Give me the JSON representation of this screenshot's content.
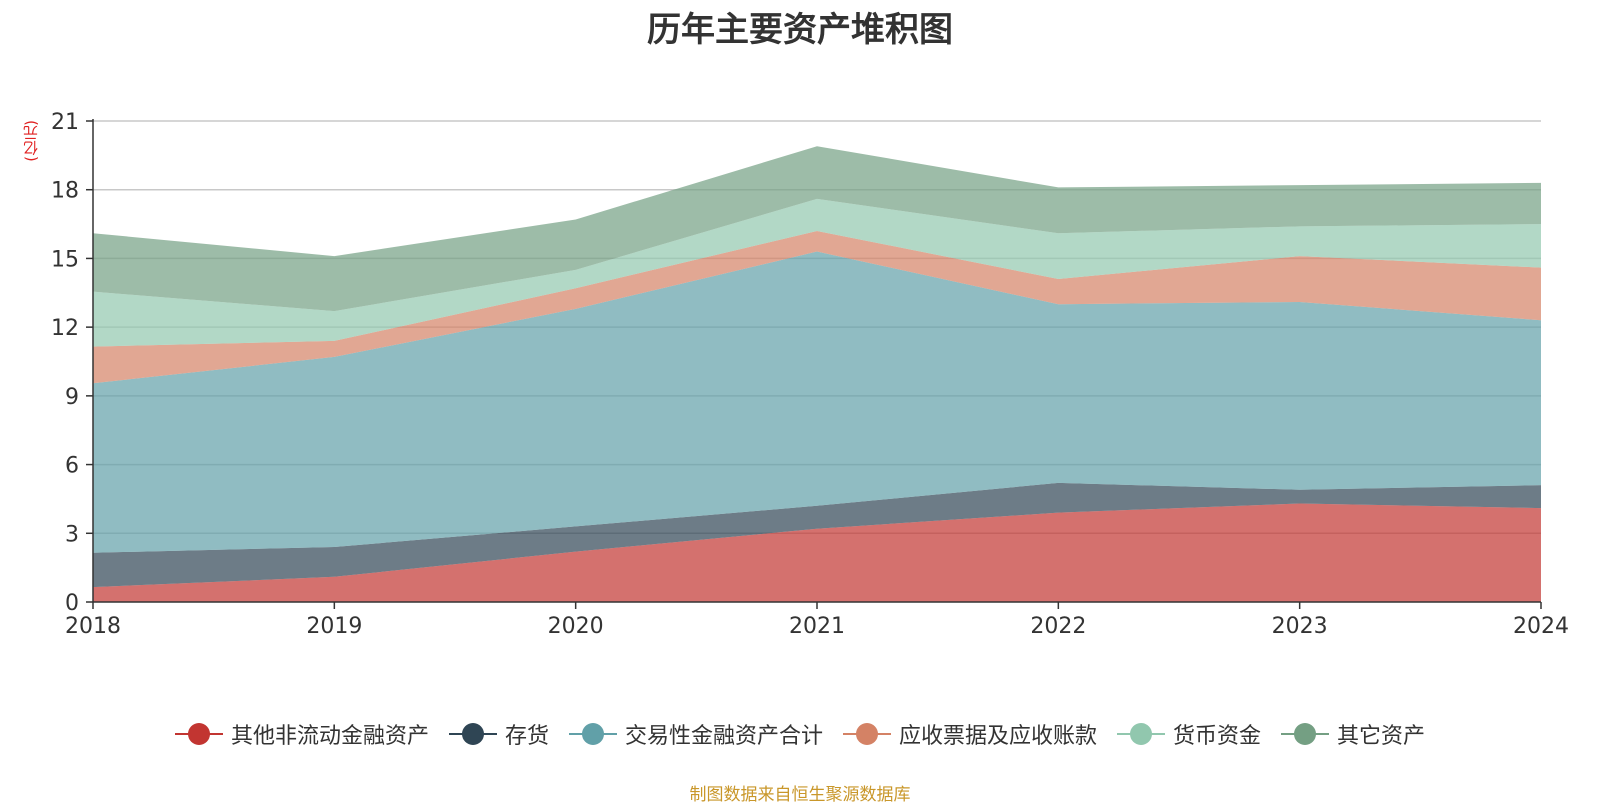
{
  "chart_data": {
    "type": "area",
    "stacked": true,
    "title": "历年主要资产堆积图",
    "unit_label": "(亿元)",
    "x": [
      "2018",
      "2019",
      "2020",
      "2021",
      "2022",
      "2023",
      "2024"
    ],
    "ylim": [
      0,
      21
    ],
    "yticks": [
      0,
      3,
      6,
      9,
      12,
      15,
      18,
      21
    ],
    "grid": true,
    "legend_position": "bottom",
    "series": [
      {
        "name": "其他非流动金融资产",
        "color": "#c23531",
        "legend_color": "#c23531",
        "values": [
          0.65,
          1.1,
          2.2,
          3.2,
          3.9,
          4.3,
          4.1
        ]
      },
      {
        "name": "存货",
        "color": "#2f4554",
        "legend_color": "#2f4554",
        "values": [
          1.5,
          1.3,
          1.1,
          1.0,
          1.3,
          0.6,
          1.0
        ]
      },
      {
        "name": "交易性金融资产合计",
        "color": "#61a0a8",
        "legend_color": "#61a0a8",
        "values": [
          7.4,
          8.3,
          9.5,
          11.1,
          7.8,
          8.2,
          7.2
        ]
      },
      {
        "name": "应收票据及应收账款",
        "color": "#d48265",
        "legend_color": "#d48265",
        "values": [
          1.6,
          0.7,
          0.9,
          0.9,
          1.1,
          2.0,
          2.3
        ]
      },
      {
        "name": "货币资金",
        "color": "#91c7ae",
        "legend_color": "#91c7ae",
        "values": [
          2.4,
          1.3,
          0.8,
          1.4,
          2.0,
          1.3,
          1.9
        ]
      },
      {
        "name": "其它资产",
        "color": "#749f83",
        "legend_color": "#749f83",
        "values": [
          2.55,
          2.4,
          2.2,
          2.3,
          2.0,
          1.8,
          1.8
        ]
      }
    ],
    "source": "制图数据来自恒生聚源数据库"
  }
}
